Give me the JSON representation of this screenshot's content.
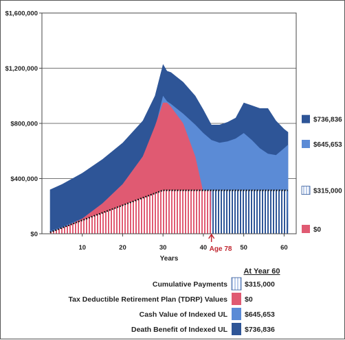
{
  "chart_data": {
    "type": "area",
    "xlabel": "Years",
    "xticks": [
      10,
      20,
      30,
      40,
      50,
      60
    ],
    "xlim": [
      0,
      63
    ],
    "ylim": [
      0,
      1600000
    ],
    "yticks": [
      0,
      400000,
      800000,
      1200000,
      1600000
    ],
    "ytick_labels": [
      "$0",
      "$400,000",
      "$800,000",
      "$1,200,000",
      "$1,600,000"
    ],
    "grid": "horizontal",
    "annotation": {
      "text": "Age 78",
      "x": 42
    },
    "legend_header": "At Year 60",
    "series": [
      {
        "name": "Death Benefit of Indexed UL",
        "color": "#2e5597",
        "end_value": "$736,836",
        "x": [
          2,
          5,
          10,
          15,
          20,
          25,
          28,
          30,
          31,
          32,
          35,
          38,
          40,
          42,
          44,
          46,
          48,
          50,
          52,
          54,
          56,
          58,
          60,
          61
        ],
        "y": [
          320000,
          360000,
          440000,
          540000,
          660000,
          820000,
          1000000,
          1230000,
          1180000,
          1170000,
          1100000,
          1000000,
          900000,
          790000,
          790000,
          810000,
          840000,
          950000,
          930000,
          910000,
          910000,
          820000,
          760000,
          737000
        ]
      },
      {
        "name": "Cash Value of Indexed UL",
        "color": "#5b8bd6",
        "end_value": "$645,653",
        "x": [
          2,
          5,
          10,
          15,
          20,
          25,
          28,
          30,
          31,
          32,
          35,
          38,
          40,
          42,
          44,
          46,
          48,
          50,
          52,
          54,
          56,
          58,
          60,
          61
        ],
        "y": [
          20000,
          50000,
          110000,
          220000,
          360000,
          560000,
          760000,
          1000000,
          960000,
          940000,
          870000,
          790000,
          730000,
          680000,
          660000,
          670000,
          690000,
          730000,
          680000,
          620000,
          580000,
          570000,
          620000,
          646000
        ]
      },
      {
        "name": "Tax Deductible Retirement Plan (TDRP) Values",
        "color": "#e05a72",
        "end_value": "$0",
        "x": [
          2,
          5,
          10,
          15,
          20,
          25,
          28,
          30,
          31,
          32,
          35,
          38,
          40,
          41,
          42
        ],
        "y": [
          10000,
          40000,
          110000,
          220000,
          360000,
          560000,
          780000,
          950000,
          950000,
          920000,
          800000,
          560000,
          300000,
          120000,
          0
        ]
      },
      {
        "name": "Cumulative Payments",
        "color": "#c8d6ee",
        "end_value": "$315,000",
        "x": [
          2,
          30,
          61
        ],
        "y": [
          10500,
          315000,
          315000
        ]
      }
    ]
  }
}
